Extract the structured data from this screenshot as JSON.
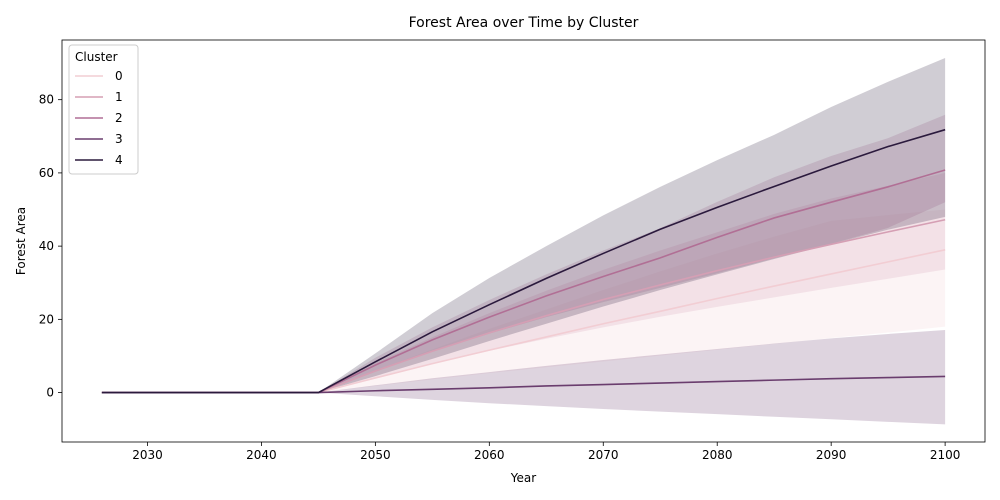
{
  "chart_data": {
    "type": "line",
    "title": "Forest Area over Time by Cluster",
    "xlabel": "Year",
    "ylabel": "Forest Area",
    "xlim": [
      2022.5,
      2103.5
    ],
    "ylim": [
      -13.5,
      96.3
    ],
    "xticks": [
      2030,
      2040,
      2050,
      2060,
      2070,
      2080,
      2090,
      2100
    ],
    "yticks": [
      0,
      20,
      40,
      60,
      80
    ],
    "grid": false,
    "legend": {
      "title": "Cluster",
      "placement": "top-left"
    },
    "x": [
      2026,
      2045,
      2050,
      2055,
      2060,
      2065,
      2070,
      2075,
      2080,
      2085,
      2090,
      2095,
      2100
    ],
    "series": [
      {
        "name": "0",
        "color": "#f2cdd3",
        "values": [
          0,
          0,
          4.0,
          7.9,
          11.6,
          15.2,
          18.8,
          22.2,
          25.7,
          29.1,
          32.4,
          35.7,
          39.0
        ],
        "ci_lower": [
          0,
          0,
          1.8,
          3.6,
          5.3,
          6.9,
          8.5,
          10.1,
          11.7,
          13.3,
          14.9,
          16.4,
          18.0
        ],
        "ci_upper": [
          0,
          0,
          6.0,
          11.8,
          17.4,
          22.7,
          28.0,
          33.1,
          38.0,
          42.6,
          46.9,
          48.5,
          50.0
        ]
      },
      {
        "name": "1",
        "color": "#d59fb4",
        "values": [
          0,
          0,
          5.9,
          11.3,
          16.3,
          21.0,
          25.4,
          29.4,
          33.3,
          37.0,
          40.5,
          43.9,
          47.2
        ],
        "ci_lower": [
          0,
          0,
          3.8,
          7.8,
          11.4,
          14.7,
          17.8,
          20.7,
          23.4,
          26.0,
          28.6,
          31.1,
          33.6
        ],
        "ci_upper": [
          0,
          0,
          8.1,
          15.1,
          21.7,
          27.8,
          33.5,
          38.8,
          43.8,
          48.8,
          53.0,
          56.5,
          60.0
        ]
      },
      {
        "name": "2",
        "color": "#b16f95",
        "values": [
          0,
          0,
          7.5,
          14.4,
          20.6,
          26.4,
          31.7,
          36.8,
          42.4,
          47.7,
          52.0,
          56.2,
          60.8
        ],
        "ci_lower": [
          0,
          0,
          5.7,
          11.3,
          16.1,
          20.6,
          24.7,
          28.6,
          32.6,
          36.7,
          40.6,
          45.0,
          52.0
        ],
        "ci_upper": [
          0,
          0,
          9.5,
          17.8,
          25.3,
          32.3,
          38.8,
          44.9,
          52.1,
          58.8,
          64.6,
          69.5,
          75.9
        ]
      },
      {
        "name": "3",
        "color": "#6a3d6e",
        "values": [
          0,
          0,
          0.5,
          0.9,
          1.3,
          1.8,
          2.2,
          2.6,
          3.0,
          3.4,
          3.8,
          4.1,
          4.4
        ],
        "ci_lower": [
          0,
          0,
          -1.0,
          -2.0,
          -2.9,
          -3.7,
          -4.5,
          -5.2,
          -5.9,
          -6.6,
          -7.3,
          -8.0,
          -8.7
        ],
        "ci_upper": [
          0,
          0,
          2.0,
          3.9,
          5.6,
          7.3,
          8.9,
          10.4,
          11.9,
          13.4,
          14.8,
          16.0,
          17.1
        ]
      },
      {
        "name": "4",
        "color": "#2b1a3d",
        "values": [
          0,
          0,
          8.4,
          16.6,
          24.0,
          31.2,
          38.0,
          44.6,
          50.6,
          56.3,
          61.9,
          67.2,
          71.8
        ],
        "ci_lower": [
          0,
          0,
          4.5,
          9.2,
          14.1,
          18.8,
          23.5,
          28.0,
          32.3,
          36.5,
          40.5,
          44.5,
          48.0
        ],
        "ci_upper": [
          0,
          0,
          10.7,
          21.7,
          31.3,
          40.0,
          48.4,
          56.2,
          63.5,
          70.4,
          78.0,
          84.9,
          91.4
        ]
      }
    ]
  }
}
